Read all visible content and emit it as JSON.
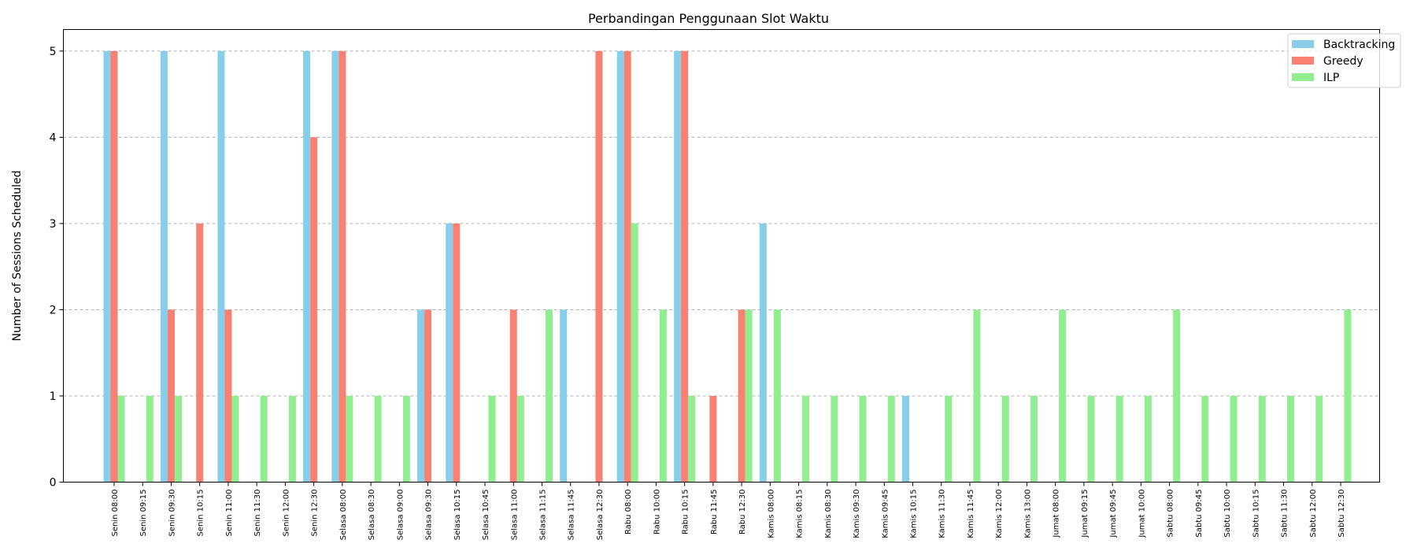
{
  "chart_data": {
    "type": "bar",
    "title": "Perbandingan Penggunaan Slot Waktu",
    "xlabel": "",
    "ylabel": "Number of Sessions Scheduled",
    "ylim": [
      0,
      5.25
    ],
    "yticks": [
      0,
      1,
      2,
      3,
      4,
      5
    ],
    "grid": "y-dashed",
    "legend_position": "top-right",
    "categories": [
      "Senin 08:00",
      "Senin 09:15",
      "Senin 09:30",
      "Senin 10:15",
      "Senin 11:00",
      "Senin 11:30",
      "Senin 12:00",
      "Senin 12:30",
      "Selasa 08:00",
      "Selasa 08:30",
      "Selasa 09:00",
      "Selasa 09:30",
      "Selasa 10:15",
      "Selasa 10:45",
      "Selasa 11:00",
      "Selasa 11:15",
      "Selasa 11:45",
      "Selasa 12:30",
      "Rabu 08:00",
      "Rabu 10:00",
      "Rabu 10:15",
      "Rabu 11:45",
      "Rabu 12:30",
      "Kamis 08:00",
      "Kamis 08:15",
      "Kamis 08:30",
      "Kamis 09:30",
      "Kamis 09:45",
      "Kamis 10:15",
      "Kamis 11:30",
      "Kamis 11:45",
      "Kamis 12:00",
      "Kamis 13:00",
      "Jumat 08:00",
      "Jumat 09:15",
      "Jumat 09:45",
      "Jumat 10:00",
      "Sabtu 08:00",
      "Sabtu 09:45",
      "Sabtu 10:00",
      "Sabtu 10:15",
      "Sabtu 11:30",
      "Sabtu 12:00",
      "Sabtu 12:30"
    ],
    "series": [
      {
        "name": "Backtracking",
        "color": "#87ceeb",
        "values": [
          5,
          0,
          5,
          0,
          5,
          0,
          0,
          5,
          5,
          0,
          0,
          2,
          3,
          0,
          0,
          0,
          2,
          0,
          5,
          0,
          5,
          0,
          0,
          3,
          0,
          0,
          0,
          0,
          1,
          0,
          0,
          0,
          0,
          0,
          0,
          0,
          0,
          0,
          0,
          0,
          0,
          0,
          0,
          0
        ]
      },
      {
        "name": "Greedy",
        "color": "#fa8072",
        "values": [
          5,
          0,
          2,
          3,
          2,
          0,
          0,
          4,
          5,
          0,
          0,
          2,
          3,
          0,
          2,
          0,
          0,
          5,
          5,
          0,
          5,
          1,
          2,
          0,
          0,
          0,
          0,
          0,
          0,
          0,
          0,
          0,
          0,
          0,
          0,
          0,
          0,
          0,
          0,
          0,
          0,
          0,
          0,
          0
        ]
      },
      {
        "name": "ILP",
        "color": "#90ee90",
        "values": [
          1,
          1,
          1,
          0,
          1,
          1,
          1,
          0,
          1,
          1,
          1,
          0,
          0,
          1,
          1,
          2,
          0,
          0,
          3,
          2,
          1,
          0,
          2,
          2,
          1,
          1,
          1,
          1,
          0,
          1,
          2,
          1,
          1,
          2,
          1,
          1,
          1,
          2,
          1,
          1,
          1,
          1,
          1,
          2
        ]
      }
    ]
  }
}
